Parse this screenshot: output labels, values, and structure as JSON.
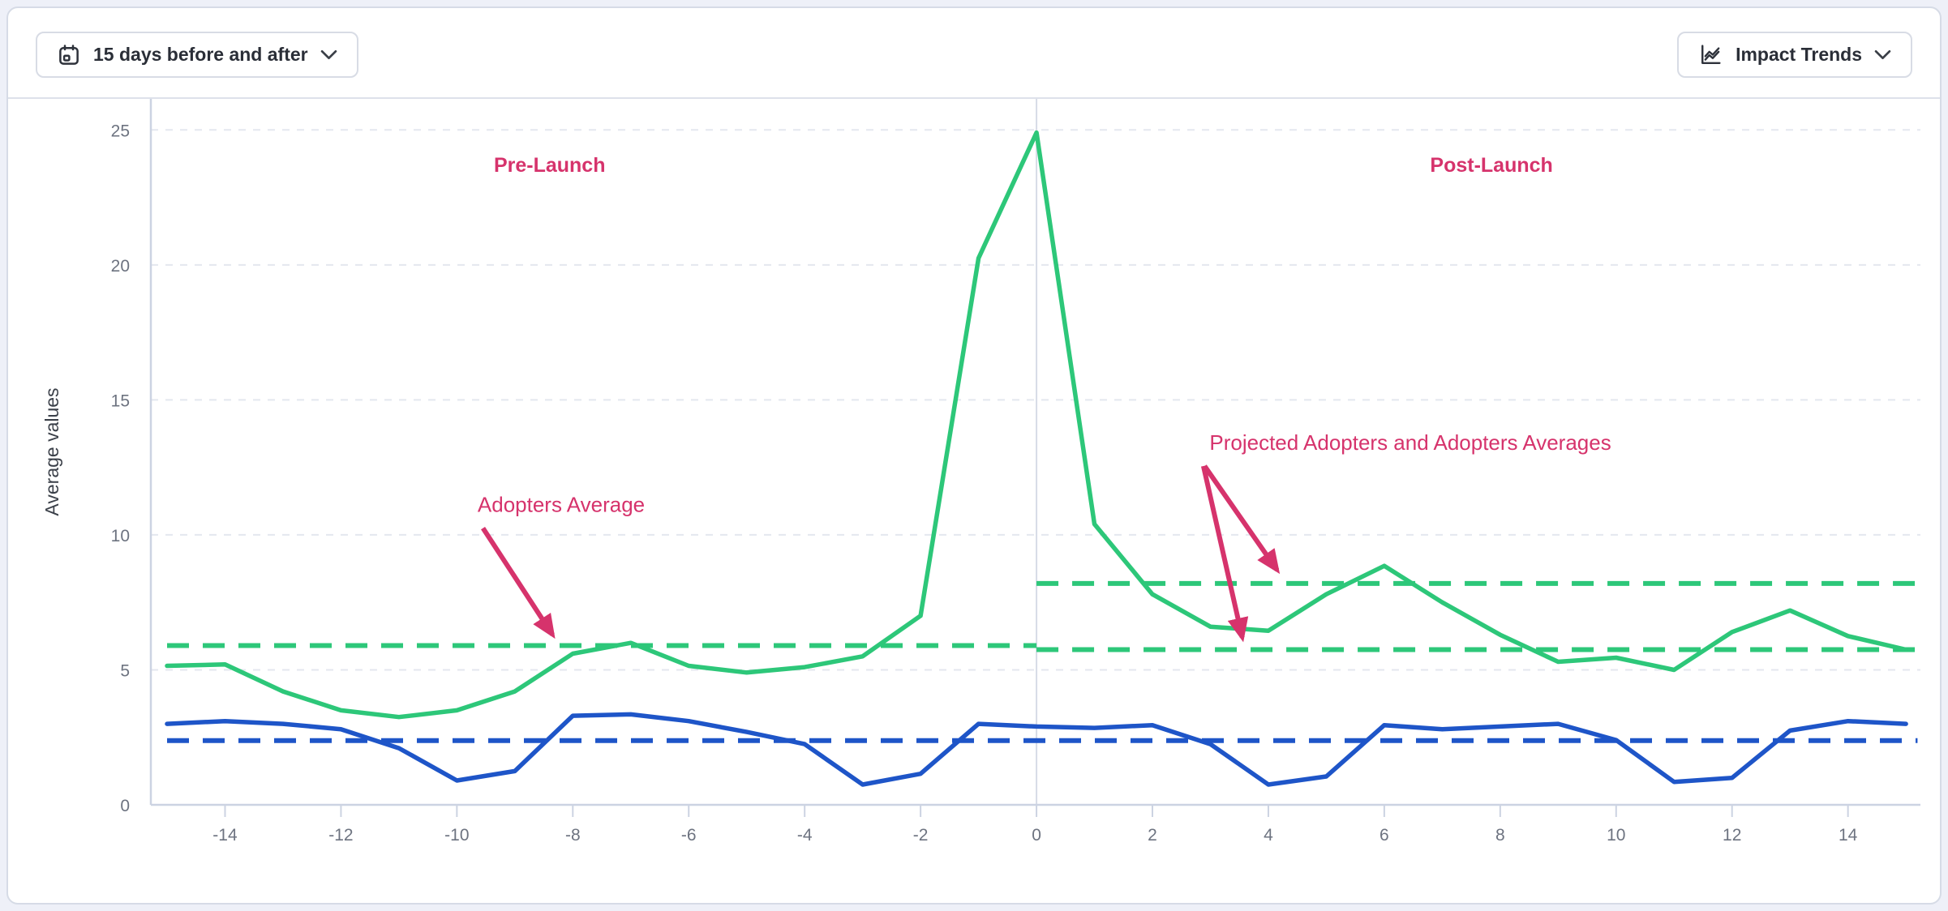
{
  "toolbar": {
    "date_range_button": {
      "label": "15 days before and after",
      "icon": "calendar-icon",
      "chevron": "chevron-down-icon"
    },
    "trends_button": {
      "label": "Impact Trends",
      "icon": "line-chart-icon",
      "chevron": "chevron-down-icon"
    }
  },
  "chart_data": {
    "type": "line",
    "ylabel": "Average values",
    "xlabel": "",
    "xlim": [
      -15.28,
      15.25
    ],
    "ylim": [
      0,
      26.15
    ],
    "x_ticks": [
      -14,
      -12,
      -10,
      -8,
      -6,
      -4,
      -2,
      0,
      2,
      4,
      6,
      8,
      10,
      12,
      14
    ],
    "y_ticks": [
      0,
      5,
      10,
      15,
      20,
      25
    ],
    "grid": "horizontal-dashed",
    "x": [
      -15,
      -14,
      -13,
      -12,
      -11,
      -10,
      -9,
      -8,
      -7,
      -6,
      -5,
      -4,
      -3,
      -2,
      -1,
      0,
      1,
      2,
      3,
      4,
      5,
      6,
      7,
      8,
      9,
      10,
      11,
      12,
      13,
      14,
      15
    ],
    "series": [
      {
        "id": "adopters-green",
        "color": "#2dc779",
        "values": [
          5.15,
          5.2,
          4.2,
          3.5,
          3.25,
          3.5,
          4.2,
          5.6,
          6.0,
          5.15,
          4.9,
          5.1,
          5.5,
          7.0,
          20.25,
          24.9,
          10.4,
          7.8,
          6.6,
          6.45,
          7.8,
          8.85,
          7.5,
          6.3,
          5.3,
          5.45,
          5.0,
          6.4,
          7.2,
          6.25,
          5.75
        ]
      },
      {
        "id": "secondary-blue",
        "color": "#1e55c8",
        "values": [
          3.0,
          3.1,
          3.0,
          2.8,
          2.1,
          0.9,
          1.25,
          3.3,
          3.35,
          3.1,
          2.7,
          2.25,
          0.75,
          1.15,
          3.0,
          2.9,
          2.85,
          2.95,
          2.25,
          0.75,
          1.05,
          2.95,
          2.8,
          2.9,
          3.0,
          2.4,
          0.85,
          1.0,
          2.75,
          3.1,
          3.0
        ]
      }
    ],
    "average_lines": [
      {
        "id": "adopters-pre-launch-average",
        "color": "#2dc779",
        "value": 5.9,
        "x_from": -15.0,
        "x_to": 0.0
      },
      {
        "id": "adopters-post-launch-average",
        "color": "#2dc779",
        "value": 8.2,
        "x_from": 0.0,
        "x_to": 15.2
      },
      {
        "id": "projected-adopters-post-launch-average",
        "color": "#2dc779",
        "value": 5.75,
        "x_from": 0.0,
        "x_to": 15.2
      },
      {
        "id": "secondary-series-average",
        "color": "#1e55c8",
        "value": 2.38,
        "x_from": -15.0,
        "x_to": 15.2
      }
    ],
    "annotations": [
      {
        "id": "pre-launch",
        "text": "Pre-Launch",
        "x": -8.4,
        "y": 23.45,
        "bold": true
      },
      {
        "id": "post-launch",
        "text": "Post-Launch",
        "x": 7.85,
        "y": 23.45,
        "bold": true
      },
      {
        "id": "adopters-average",
        "text": "Adopters Average",
        "x": -8.2,
        "y": 10.85,
        "bold": false,
        "arrows": [
          {
            "x1": -9.55,
            "y1": 10.25,
            "x2": -8.35,
            "y2": 6.3
          }
        ]
      },
      {
        "id": "projected-adopters-and-adopters-averages",
        "text": "Projected Adopters and Adopters Averages",
        "x": 6.45,
        "y": 13.15,
        "bold": false,
        "arrows": [
          {
            "x1": 2.9,
            "y1": 12.55,
            "x2": 4.15,
            "y2": 8.7
          },
          {
            "x1": 2.88,
            "y1": 12.55,
            "x2": 3.55,
            "y2": 6.2
          }
        ]
      }
    ],
    "colors": {
      "accent_pink": "#d6336c",
      "green": "#2dc779",
      "blue": "#1e55c8"
    }
  }
}
